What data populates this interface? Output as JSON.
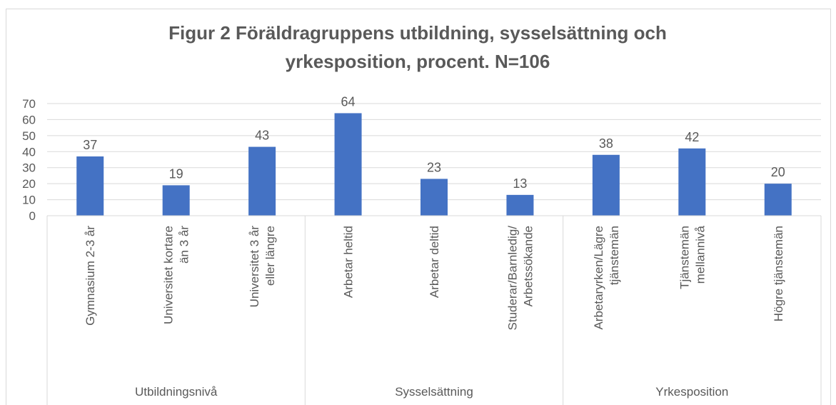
{
  "chart_data": {
    "type": "bar",
    "title": "Figur 2 Föräldragruppens utbildning, sysselsättning och\nyrkesposition, procent. N=106",
    "color": "#4472c4",
    "ylim": [
      0,
      70
    ],
    "yticks": [
      0,
      10,
      20,
      30,
      40,
      50,
      60,
      70
    ],
    "grid": true,
    "groups": [
      {
        "name": "Utbildningsnivå",
        "categories": [
          "Gymnasium 2-3 år",
          "Universitet kortare\nän 3 år",
          "Universitet 3 år\neller längre"
        ],
        "values": [
          37,
          19,
          43
        ]
      },
      {
        "name": "Sysselsättning",
        "categories": [
          "Arbetar heltid",
          "Arbetar deltid",
          "Studerar/Barnledig/\nArbetssökande"
        ],
        "values": [
          64,
          23,
          13
        ]
      },
      {
        "name": "Yrkesposition",
        "categories": [
          "Arbetaryrken/Lägre\ntjänstemän",
          "Tjänstemän\nmellannivå",
          "Högre tjänstemän"
        ],
        "values": [
          38,
          42,
          20
        ]
      }
    ]
  }
}
